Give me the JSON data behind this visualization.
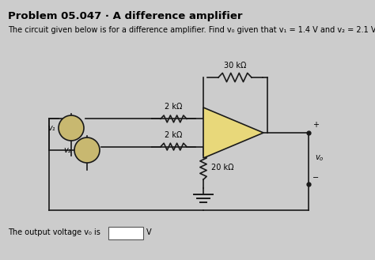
{
  "title": "Problem 05.047 · A difference amplifier",
  "subtitle": "The circuit given below is for a difference amplifier. Find v₀ given that v₁ = 1.4 V and v₂ = 2.1 V.",
  "footer": "The output voltage v₀ is",
  "footer_unit": "V",
  "bg_color": "#cccccc",
  "wire_color": "#1a1a1a",
  "R1_label": "2 kΩ",
  "R2_label": "2 kΩ",
  "R3_label": "30 kΩ",
  "R4_label": "20 kΩ",
  "v1_label": "v₁",
  "v2_label": "v₂",
  "vo_label": "v₀",
  "opamp_fill": "#e8d87a",
  "title_fontsize": 9.5,
  "subtitle_fontsize": 7.0,
  "label_fontsize": 7.0,
  "footer_fontsize": 7.0
}
